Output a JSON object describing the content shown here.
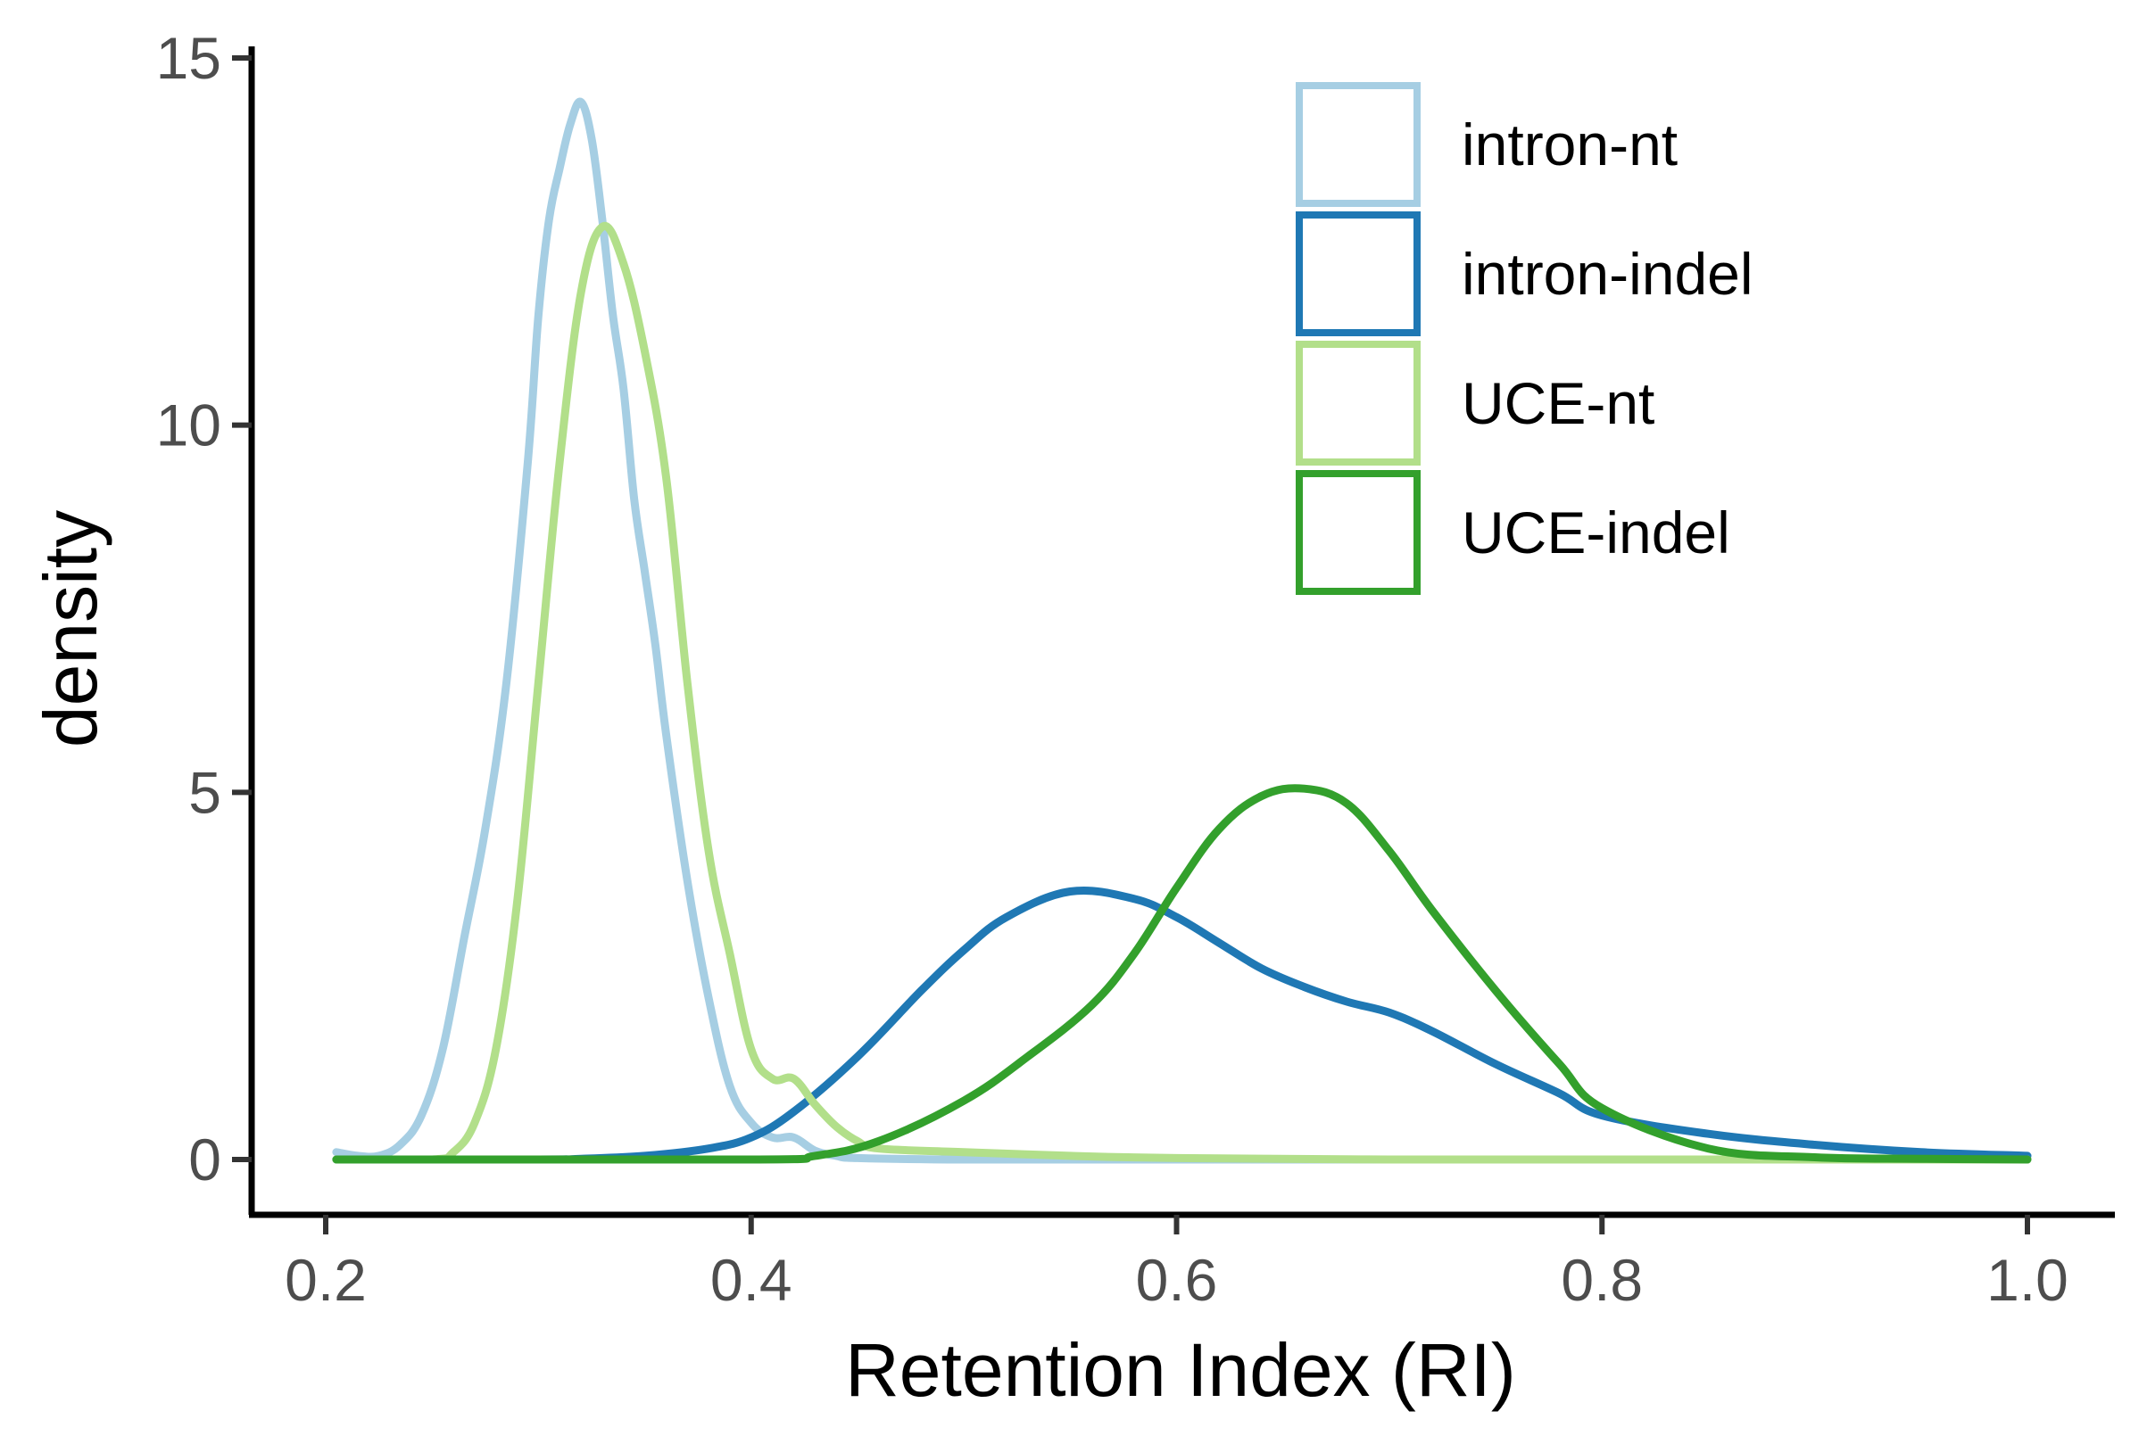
{
  "chart_data": {
    "type": "line",
    "title": "",
    "xlabel": "Retention Index (RI)",
    "ylabel": "density",
    "xlim": [
      0.2,
      1.02
    ],
    "ylim": [
      -0.7,
      15.05
    ],
    "xticks": [
      0.2,
      0.4,
      0.6,
      0.8,
      1.0
    ],
    "xtick_labels": [
      "0.2",
      "0.4",
      "0.6",
      "0.8",
      "1.0"
    ],
    "yticks": [
      0,
      5,
      10,
      15
    ],
    "ytick_labels": [
      "0",
      "5",
      "10",
      "15"
    ],
    "grid": false,
    "legend_position": "top-right",
    "series": [
      {
        "name": "intron-nt",
        "color": "#a6cee3",
        "x": [
          0.205,
          0.215,
          0.225,
          0.235,
          0.245,
          0.255,
          0.265,
          0.275,
          0.285,
          0.295,
          0.3,
          0.305,
          0.31,
          0.315,
          0.32,
          0.325,
          0.33,
          0.335,
          0.34,
          0.345,
          0.35,
          0.355,
          0.36,
          0.37,
          0.38,
          0.39,
          0.4,
          0.41,
          0.42,
          0.43,
          0.44,
          0.45,
          0.5,
          0.6,
          0.7,
          0.8,
          0.9,
          1.0
        ],
        "y": [
          0.1,
          0.05,
          0.05,
          0.2,
          0.6,
          1.5,
          3.0,
          4.5,
          6.5,
          9.5,
          11.5,
          12.8,
          13.5,
          14.1,
          14.4,
          13.9,
          12.8,
          11.5,
          10.5,
          9.0,
          8.0,
          7.0,
          5.8,
          3.8,
          2.2,
          1.0,
          0.5,
          0.3,
          0.3,
          0.12,
          0.05,
          0.02,
          0.0,
          0.0,
          0.0,
          0.0,
          0.0,
          0.0
        ]
      },
      {
        "name": "intron-indel",
        "color": "#1f78b4",
        "x": [
          0.205,
          0.3,
          0.32,
          0.35,
          0.38,
          0.4,
          0.42,
          0.45,
          0.48,
          0.5,
          0.52,
          0.55,
          0.58,
          0.6,
          0.62,
          0.64,
          0.66,
          0.68,
          0.7,
          0.72,
          0.75,
          0.78,
          0.8,
          0.85,
          0.9,
          0.95,
          1.0
        ],
        "y": [
          0.0,
          0.0,
          0.01,
          0.05,
          0.15,
          0.3,
          0.65,
          1.4,
          2.3,
          2.85,
          3.3,
          3.65,
          3.55,
          3.3,
          2.95,
          2.6,
          2.35,
          2.15,
          2.0,
          1.75,
          1.3,
          0.9,
          0.6,
          0.35,
          0.2,
          0.1,
          0.05
        ]
      },
      {
        "name": "UCE-nt",
        "color": "#b2df8a",
        "x": [
          0.205,
          0.25,
          0.26,
          0.27,
          0.28,
          0.29,
          0.3,
          0.31,
          0.32,
          0.33,
          0.34,
          0.35,
          0.36,
          0.37,
          0.38,
          0.39,
          0.4,
          0.41,
          0.42,
          0.43,
          0.44,
          0.45,
          0.46,
          0.5,
          0.55,
          0.6,
          0.7,
          0.8,
          0.9,
          1.0
        ],
        "y": [
          0.0,
          0.0,
          0.1,
          0.5,
          1.5,
          3.5,
          6.5,
          9.5,
          11.8,
          12.7,
          12.2,
          11.0,
          9.3,
          6.5,
          4.2,
          2.8,
          1.5,
          1.1,
          1.1,
          0.75,
          0.45,
          0.25,
          0.15,
          0.1,
          0.05,
          0.02,
          0.0,
          0.0,
          0.0,
          0.0
        ]
      },
      {
        "name": "UCE-indel",
        "color": "#33a02c",
        "x": [
          0.205,
          0.4,
          0.43,
          0.46,
          0.5,
          0.53,
          0.56,
          0.58,
          0.6,
          0.62,
          0.64,
          0.66,
          0.68,
          0.7,
          0.72,
          0.75,
          0.78,
          0.8,
          0.85,
          0.9,
          0.95,
          1.0
        ],
        "y": [
          0.0,
          0.0,
          0.05,
          0.25,
          0.8,
          1.4,
          2.1,
          2.8,
          3.7,
          4.5,
          4.95,
          5.05,
          4.85,
          4.2,
          3.4,
          2.3,
          1.3,
          0.7,
          0.15,
          0.03,
          0.01,
          0.0
        ]
      }
    ]
  }
}
